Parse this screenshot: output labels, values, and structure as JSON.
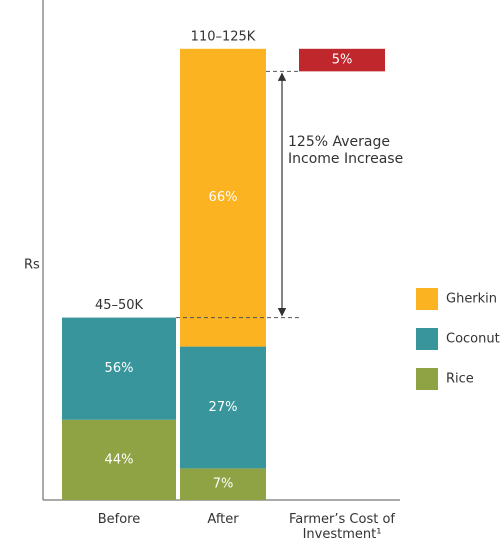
{
  "chart_data": {
    "type": "stacked_bar",
    "y_label": "Rs",
    "categories": [
      "Before",
      "After",
      "Farmer’s Cost of Investment¹"
    ],
    "series": [
      {
        "name": "Rice",
        "color": "#8fa344",
        "values": [
          44,
          7,
          null
        ],
        "value_labels": [
          "44%",
          "7%",
          null
        ]
      },
      {
        "name": "Coconut",
        "color": "#37959b",
        "values": [
          56,
          27,
          null
        ],
        "value_labels": [
          "56%",
          "27%",
          null
        ]
      },
      {
        "name": "Gherkin",
        "color": "#fbb321",
        "values": [
          null,
          66,
          null
        ],
        "value_labels": [
          null,
          "66%",
          null
        ]
      }
    ],
    "totals": [
      47.5,
      117.5
    ],
    "total_labels": [
      "45–50K",
      "110–125K"
    ],
    "cost": {
      "value": 5,
      "value_label": "5%",
      "color": "#c0272d"
    },
    "annotation": "125% Average Income Increase",
    "ylim": [
      0,
      125
    ]
  }
}
